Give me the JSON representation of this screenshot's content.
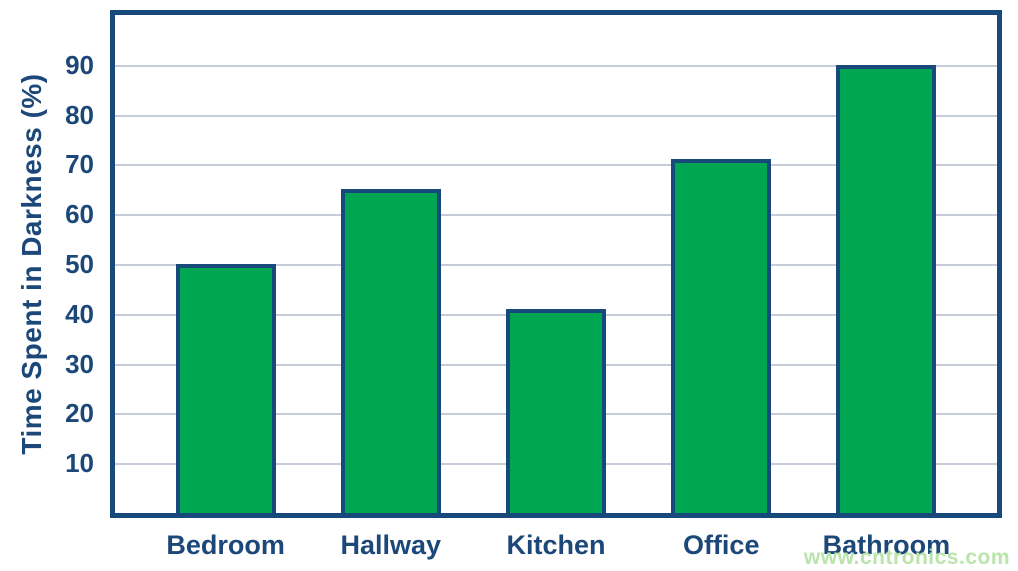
{
  "watermark": {
    "text": "www.cntronics.com"
  },
  "colors": {
    "bar_fill": "#00A651",
    "bar_border": "#17497A",
    "axis_frame": "#17497A",
    "label_text": "#1C4879",
    "gridline": "#C7CCDA",
    "watermark": "#B9E4AB",
    "background": "#FFFFFF"
  },
  "chart_data": {
    "type": "bar",
    "title": "",
    "categories": [
      "Bedroom",
      "Hallway",
      "Kitchen",
      "Office",
      "Bathroom"
    ],
    "values": [
      50,
      65,
      41,
      71,
      90
    ],
    "xlabel": "",
    "ylabel": "Time Spent in Darkness (%)",
    "ylim": [
      0,
      100
    ],
    "yticks": [
      10,
      20,
      30,
      40,
      50,
      60,
      70,
      80,
      90
    ],
    "grid": true,
    "legend_position": "none"
  }
}
